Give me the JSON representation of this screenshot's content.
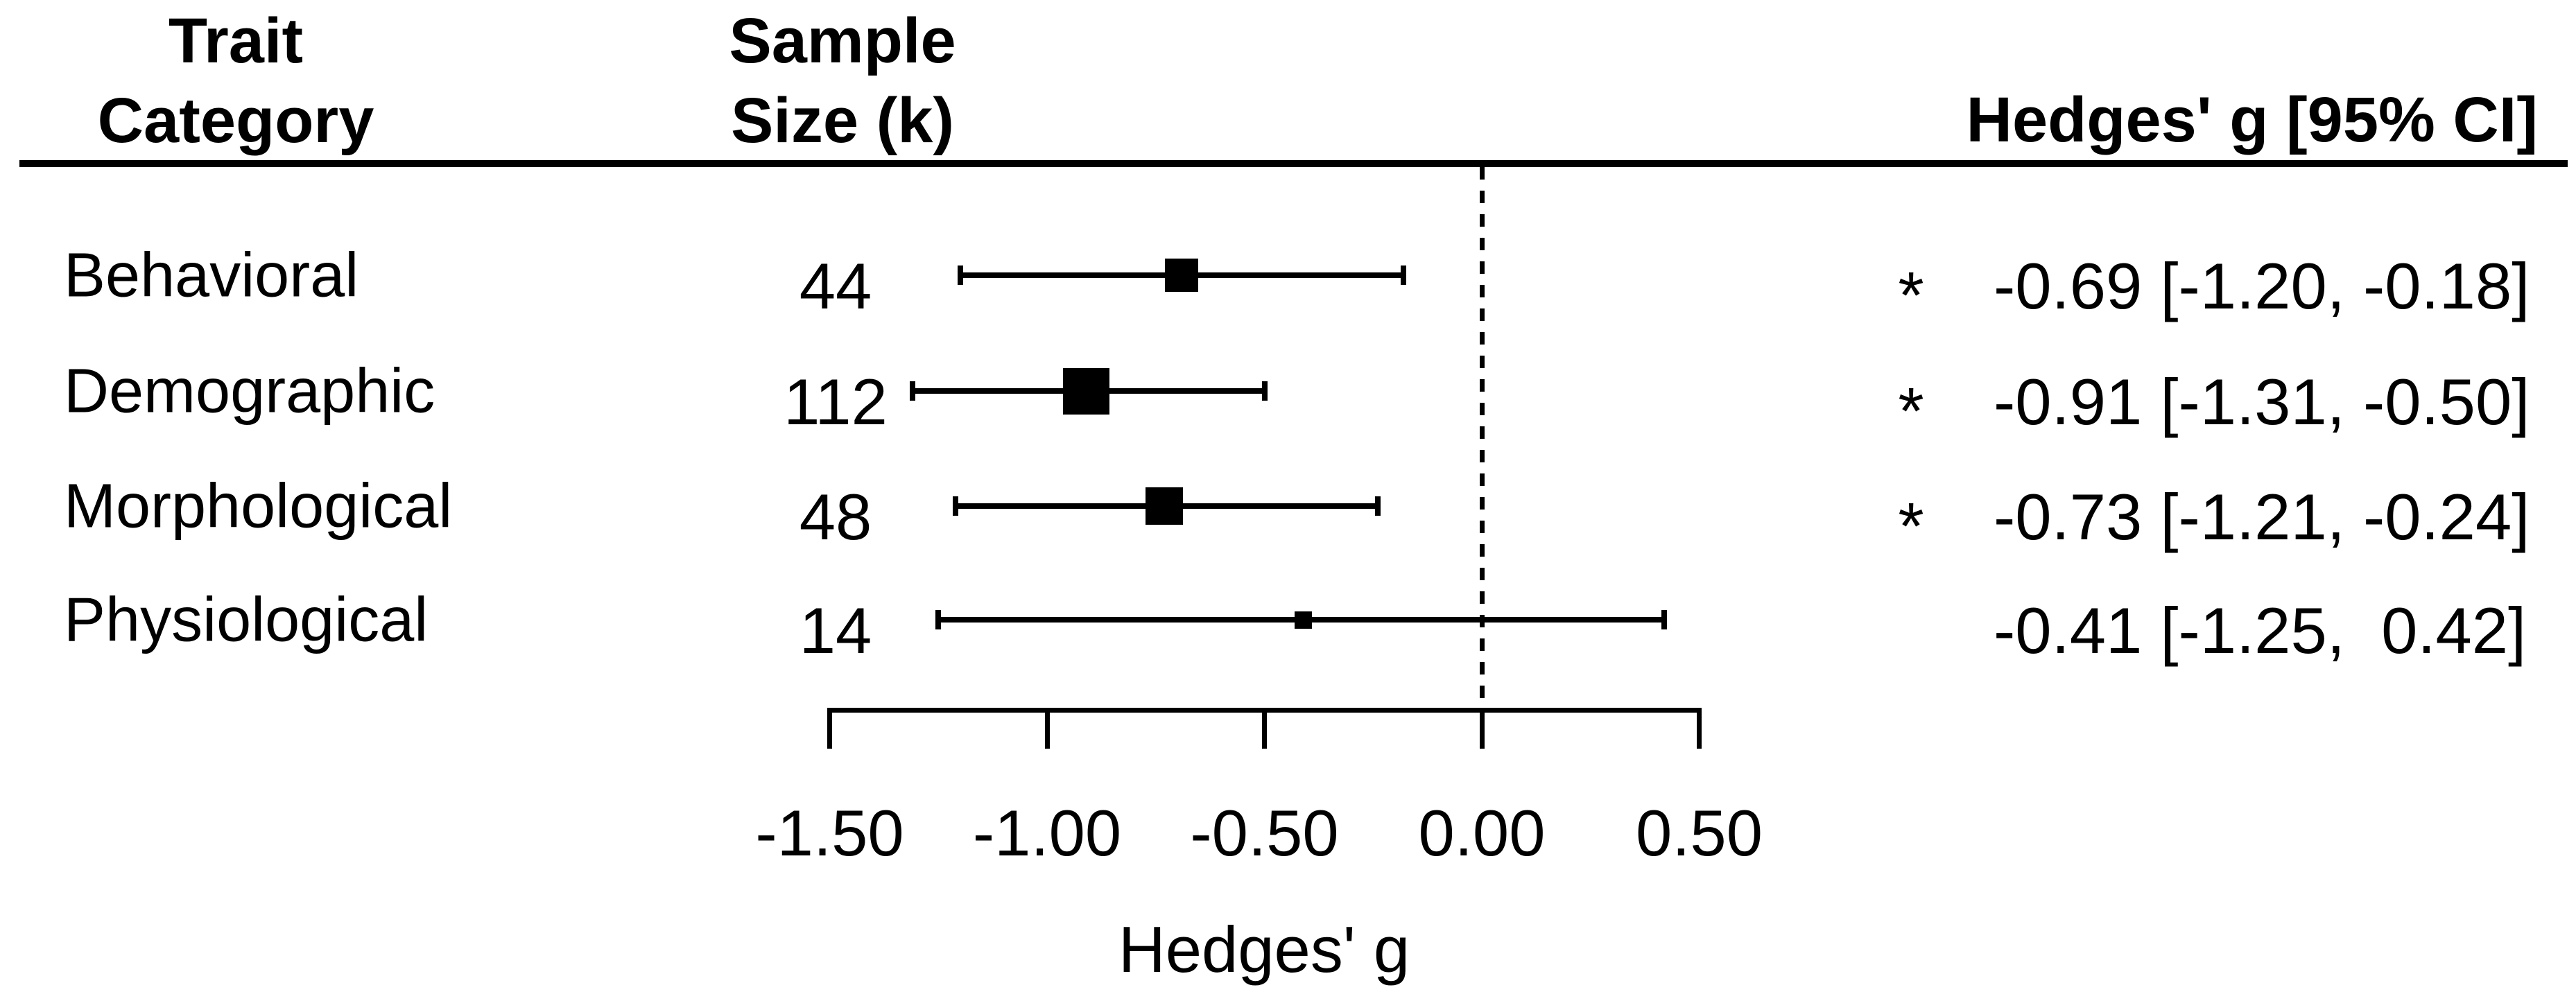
{
  "columns": {
    "trait": {
      "line1": "Trait",
      "line2": "Category"
    },
    "sample": {
      "line1": "Sample",
      "line2": "Size (k)"
    },
    "effect": "Hedges' g [95% CI]"
  },
  "chart_data": {
    "type": "forest",
    "title": "",
    "xlabel": "Hedges' g",
    "xlim": [
      -1.5,
      0.5
    ],
    "x_ticks": [
      -1.5,
      -1.0,
      -0.5,
      0.0,
      0.5
    ],
    "x_tick_labels": [
      "-1.50",
      "-1.00",
      "-0.50",
      "0.00",
      "0.50"
    ],
    "reference_line": 0.0,
    "reference_line_style": "dashed",
    "grid": false,
    "legend": false,
    "significance_marker": "*",
    "rows": [
      {
        "category": "Behavioral",
        "k": "44",
        "g": -0.69,
        "ci_low": -1.2,
        "ci_high": -0.18,
        "significant": true,
        "estimate_label": "-0.69 [-1.20, -0.18]",
        "marker_px": 48
      },
      {
        "category": "Demographic",
        "k": "112",
        "g": -0.91,
        "ci_low": -1.31,
        "ci_high": -0.5,
        "significant": true,
        "estimate_label": "-0.91 [-1.31, -0.50]",
        "marker_px": 67
      },
      {
        "category": "Morphological",
        "k": "48",
        "g": -0.73,
        "ci_low": -1.21,
        "ci_high": -0.24,
        "significant": true,
        "estimate_label": "-0.73 [-1.21, -0.24]",
        "marker_px": 54
      },
      {
        "category": "Physiological",
        "k": "14",
        "g": -0.41,
        "ci_low": -1.25,
        "ci_high": 0.42,
        "significant": false,
        "estimate_label": "-0.41 [-1.25,  0.42]",
        "marker_px": 25
      }
    ],
    "colors": {
      "foreground": "#000000",
      "background": "#ffffff"
    }
  }
}
